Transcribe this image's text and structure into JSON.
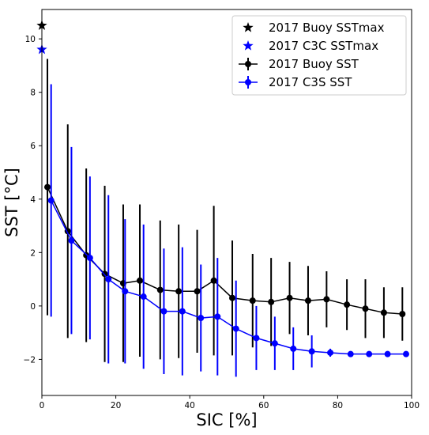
{
  "chart_data": {
    "type": "scatter",
    "xlabel": "SIC [%]",
    "ylabel": "SST  [°C]",
    "xlim": [
      0,
      100
    ],
    "ylim": [
      -3.35,
      11.1
    ],
    "xticks": [
      "0",
      "20",
      "40",
      "60",
      "80",
      "100"
    ],
    "yticks": [
      "−2",
      "0",
      "2",
      "4",
      "6",
      "8",
      "10"
    ],
    "grid": false,
    "legend_placement": "top-right",
    "series": [
      {
        "name": "2017 Buoy SSTmax",
        "kind": "star",
        "color": "#000000",
        "x": [
          0
        ],
        "y": [
          10.5
        ]
      },
      {
        "name": "2017 C3C SSTmax",
        "kind": "star",
        "color": "#0000ff",
        "x": [
          0
        ],
        "y": [
          9.6
        ]
      },
      {
        "name": "2017 Buoy SST",
        "kind": "errorbar",
        "color": "#000000",
        "x": [
          1.5,
          7,
          12,
          17,
          22,
          26.5,
          32,
          37,
          42,
          46.5,
          51.5,
          57,
          62,
          67,
          72,
          77,
          82.5,
          87.5,
          92.5,
          97.5
        ],
        "y": [
          4.45,
          2.8,
          1.9,
          1.2,
          0.85,
          0.95,
          0.6,
          0.55,
          0.55,
          0.95,
          0.3,
          0.2,
          0.15,
          0.3,
          0.2,
          0.25,
          0.05,
          -0.1,
          -0.25,
          -0.3
        ],
        "yerr": [
          4.8,
          4.0,
          3.25,
          3.3,
          2.95,
          2.85,
          2.6,
          2.5,
          2.3,
          2.8,
          2.15,
          1.75,
          1.65,
          1.35,
          1.3,
          1.05,
          0.95,
          1.1,
          0.95,
          1.0
        ]
      },
      {
        "name": "2017 C3S SST",
        "kind": "errorbar",
        "color": "#0000ff",
        "x": [
          2.5,
          8,
          13,
          18,
          22.5,
          27.5,
          33,
          38,
          43,
          47.5,
          52.5,
          58,
          63,
          68,
          73,
          78,
          83.5,
          88.5,
          93.5,
          98.5
        ],
        "y": [
          3.95,
          2.45,
          1.8,
          1.0,
          0.55,
          0.35,
          -0.2,
          -0.2,
          -0.45,
          -0.4,
          -0.85,
          -1.2,
          -1.4,
          -1.6,
          -1.7,
          -1.75,
          -1.8,
          -1.8,
          -1.8,
          -1.8
        ],
        "yerr": [
          4.35,
          3.5,
          3.05,
          3.15,
          2.7,
          2.7,
          2.35,
          2.4,
          2.0,
          2.2,
          1.8,
          1.2,
          1.0,
          0.8,
          0.6,
          0.15,
          0.0,
          0.0,
          0.0,
          0.0
        ]
      }
    ]
  }
}
